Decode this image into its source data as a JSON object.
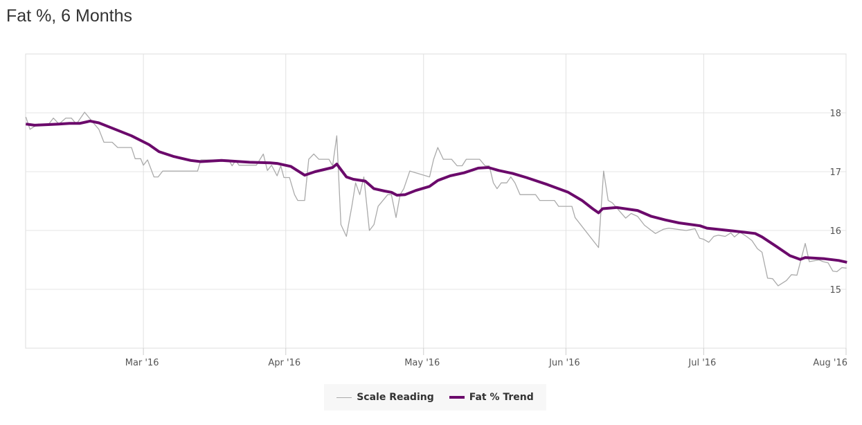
{
  "title": "Fat %, 6 Months",
  "chart_data": {
    "type": "line",
    "title": "Fat %, 6 Months",
    "xlabel": "",
    "ylabel": "",
    "x_unit": "days since 2016-02-01",
    "xlim": [
      3.35,
      182
    ],
    "ylim": [
      14,
      19
    ],
    "yticks": [
      15,
      16,
      17,
      18
    ],
    "xticks": [
      {
        "day": 29,
        "label": "Mar '16"
      },
      {
        "day": 60,
        "label": "Apr '16"
      },
      {
        "day": 90,
        "label": "May '16"
      },
      {
        "day": 121,
        "label": "Jun '16"
      },
      {
        "day": 151,
        "label": "Jul '16"
      },
      {
        "day": 182,
        "label": "Aug '16"
      }
    ],
    "grid": true,
    "legend_position": "bottom-center",
    "series": [
      {
        "name": "Scale Reading",
        "color": "#aaaaaa",
        "points": [
          [
            3.4,
            17.93
          ],
          [
            4.3,
            17.72
          ],
          [
            6.1,
            17.81
          ],
          [
            8.4,
            17.81
          ],
          [
            9.4,
            17.91
          ],
          [
            10.6,
            17.81
          ],
          [
            12.1,
            17.91
          ],
          [
            13.3,
            17.91
          ],
          [
            14.4,
            17.81
          ],
          [
            16.2,
            18.01
          ],
          [
            18.1,
            17.83
          ],
          [
            19.3,
            17.72
          ],
          [
            20.4,
            17.5
          ],
          [
            22.2,
            17.5
          ],
          [
            23.4,
            17.41
          ],
          [
            26.4,
            17.41
          ],
          [
            27.2,
            17.22
          ],
          [
            28.4,
            17.22
          ],
          [
            29.0,
            17.11
          ],
          [
            29.9,
            17.2
          ],
          [
            31.3,
            16.91
          ],
          [
            32.2,
            16.91
          ],
          [
            33.2,
            17.01
          ],
          [
            40.8,
            17.01
          ],
          [
            41.5,
            17.2
          ],
          [
            47.6,
            17.2
          ],
          [
            48.3,
            17.1
          ],
          [
            49.1,
            17.19
          ],
          [
            49.8,
            17.11
          ],
          [
            53.6,
            17.11
          ],
          [
            55.1,
            17.3
          ],
          [
            56.0,
            17.02
          ],
          [
            56.9,
            17.11
          ],
          [
            58.1,
            16.93
          ],
          [
            58.9,
            17.1
          ],
          [
            59.6,
            16.9
          ],
          [
            60.8,
            16.9
          ],
          [
            61.9,
            16.61
          ],
          [
            62.6,
            16.51
          ],
          [
            64.1,
            16.51
          ],
          [
            65.0,
            17.21
          ],
          [
            66.1,
            17.3
          ],
          [
            67.2,
            17.21
          ],
          [
            69.4,
            17.21
          ],
          [
            70.2,
            17.1
          ],
          [
            71.1,
            17.61
          ],
          [
            72.0,
            16.1
          ],
          [
            73.2,
            15.9
          ],
          [
            74.4,
            16.42
          ],
          [
            75.2,
            16.81
          ],
          [
            76.1,
            16.61
          ],
          [
            77.0,
            16.91
          ],
          [
            78.2,
            16.0
          ],
          [
            79.2,
            16.1
          ],
          [
            80.1,
            16.41
          ],
          [
            82.2,
            16.61
          ],
          [
            83.0,
            16.61
          ],
          [
            84.0,
            16.22
          ],
          [
            84.9,
            16.61
          ],
          [
            85.7,
            16.71
          ],
          [
            87.0,
            17.01
          ],
          [
            91.3,
            16.91
          ],
          [
            92.2,
            17.21
          ],
          [
            93.1,
            17.41
          ],
          [
            94.3,
            17.21
          ],
          [
            96.1,
            17.21
          ],
          [
            97.3,
            17.1
          ],
          [
            98.4,
            17.1
          ],
          [
            99.3,
            17.21
          ],
          [
            102.2,
            17.21
          ],
          [
            103.4,
            17.1
          ],
          [
            104.3,
            17.1
          ],
          [
            105.2,
            16.81
          ],
          [
            106.0,
            16.71
          ],
          [
            106.9,
            16.81
          ],
          [
            108.1,
            16.81
          ],
          [
            109.0,
            16.91
          ],
          [
            109.9,
            16.81
          ],
          [
            111.0,
            16.61
          ],
          [
            114.4,
            16.61
          ],
          [
            115.3,
            16.51
          ],
          [
            118.5,
            16.51
          ],
          [
            119.4,
            16.41
          ],
          [
            122.3,
            16.41
          ],
          [
            123.0,
            16.22
          ],
          [
            128.1,
            15.71
          ],
          [
            129.2,
            17.01
          ],
          [
            130.2,
            16.51
          ],
          [
            131.1,
            16.47
          ],
          [
            134.0,
            16.21
          ],
          [
            135.2,
            16.29
          ],
          [
            136.6,
            16.24
          ],
          [
            138.1,
            16.09
          ],
          [
            139.6,
            16.0
          ],
          [
            140.5,
            15.95
          ],
          [
            142.2,
            16.02
          ],
          [
            143.4,
            16.04
          ],
          [
            147.2,
            16.0
          ],
          [
            149.1,
            16.03
          ],
          [
            150.1,
            15.87
          ],
          [
            151.0,
            15.85
          ],
          [
            152.1,
            15.8
          ],
          [
            153.2,
            15.9
          ],
          [
            154.2,
            15.92
          ],
          [
            155.7,
            15.9
          ],
          [
            156.9,
            15.96
          ],
          [
            157.7,
            15.89
          ],
          [
            158.9,
            15.97
          ],
          [
            160.3,
            15.9
          ],
          [
            161.5,
            15.83
          ],
          [
            162.7,
            15.69
          ],
          [
            163.7,
            15.63
          ],
          [
            164.9,
            15.19
          ],
          [
            166.0,
            15.18
          ],
          [
            167.2,
            15.06
          ],
          [
            169.0,
            15.15
          ],
          [
            170.1,
            15.25
          ],
          [
            171.3,
            15.24
          ],
          [
            173.1,
            15.78
          ],
          [
            174.0,
            15.47
          ],
          [
            176.1,
            15.5
          ],
          [
            177.0,
            15.47
          ],
          [
            178.1,
            15.45
          ],
          [
            179.1,
            15.31
          ],
          [
            180.0,
            15.3
          ],
          [
            181.1,
            15.37
          ],
          [
            182.1,
            15.36
          ]
        ]
      },
      {
        "name": "Fat % Trend",
        "color": "#6b0a6b",
        "points": [
          [
            3.4,
            17.81
          ],
          [
            5.3,
            17.79
          ],
          [
            8.3,
            17.8
          ],
          [
            10.6,
            17.81
          ],
          [
            12.9,
            17.82
          ],
          [
            15.1,
            17.82
          ],
          [
            17.4,
            17.86
          ],
          [
            19.3,
            17.83
          ],
          [
            21.9,
            17.75
          ],
          [
            26.4,
            17.61
          ],
          [
            30.2,
            17.46
          ],
          [
            32.4,
            17.34
          ],
          [
            35.5,
            17.26
          ],
          [
            39.3,
            17.19
          ],
          [
            41.5,
            17.17
          ],
          [
            46.0,
            17.19
          ],
          [
            52.1,
            17.16
          ],
          [
            56.6,
            17.15
          ],
          [
            58.1,
            17.14
          ],
          [
            61.1,
            17.09
          ],
          [
            64.1,
            16.94
          ],
          [
            66.4,
            17.0
          ],
          [
            70.2,
            17.07
          ],
          [
            71.1,
            17.13
          ],
          [
            73.2,
            16.91
          ],
          [
            74.7,
            16.87
          ],
          [
            77.3,
            16.84
          ],
          [
            79.2,
            16.71
          ],
          [
            81.5,
            16.67
          ],
          [
            83.0,
            16.65
          ],
          [
            84.2,
            16.6
          ],
          [
            86.0,
            16.61
          ],
          [
            88.3,
            16.68
          ],
          [
            91.3,
            16.75
          ],
          [
            93.1,
            16.85
          ],
          [
            95.8,
            16.93
          ],
          [
            98.8,
            16.98
          ],
          [
            101.9,
            17.06
          ],
          [
            104.1,
            17.07
          ],
          [
            106.4,
            17.02
          ],
          [
            109.4,
            16.97
          ],
          [
            112.4,
            16.9
          ],
          [
            117.0,
            16.78
          ],
          [
            121.5,
            16.65
          ],
          [
            124.5,
            16.51
          ],
          [
            126.8,
            16.37
          ],
          [
            128.1,
            16.3
          ],
          [
            129.0,
            16.37
          ],
          [
            132.1,
            16.39
          ],
          [
            136.6,
            16.34
          ],
          [
            139.6,
            16.24
          ],
          [
            142.6,
            16.18
          ],
          [
            145.6,
            16.13
          ],
          [
            150.2,
            16.08
          ],
          [
            151.7,
            16.04
          ],
          [
            157.7,
            15.99
          ],
          [
            162.2,
            15.95
          ],
          [
            163.7,
            15.89
          ],
          [
            166.8,
            15.73
          ],
          [
            169.8,
            15.57
          ],
          [
            172.0,
            15.51
          ],
          [
            173.1,
            15.54
          ],
          [
            177.3,
            15.52
          ],
          [
            180.4,
            15.49
          ],
          [
            182.2,
            15.46
          ]
        ]
      }
    ]
  },
  "legend": [
    "Scale Reading",
    "Fat % Trend"
  ]
}
